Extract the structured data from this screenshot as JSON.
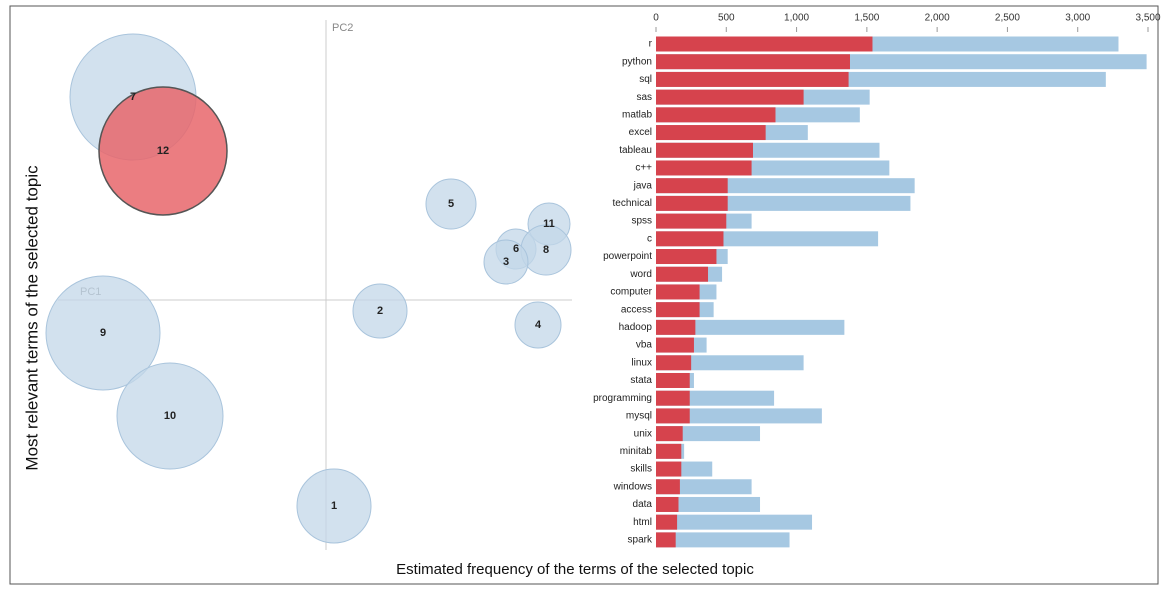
{
  "chart_data": [
    {
      "type": "bubble",
      "xlabel": "PC1",
      "ylabel": "PC2",
      "categories": [
        "7",
        "12",
        "5",
        "11",
        "6",
        "8",
        "3",
        "9",
        "2",
        "4",
        "10",
        "1"
      ],
      "x": [
        -1.93,
        -1.63,
        1.25,
        2.23,
        1.9,
        2.2,
        1.8,
        -2.23,
        0.54,
        2.12,
        -1.56,
        0.08
      ],
      "y": [
        2.03,
        1.49,
        0.96,
        0.76,
        0.51,
        0.5,
        0.38,
        -0.33,
        -0.11,
        -0.25,
        -1.16,
        -2.06
      ],
      "sizes": [
        0.63,
        0.64,
        0.25,
        0.21,
        0.2,
        0.25,
        0.22,
        0.57,
        0.27,
        0.23,
        0.53,
        0.37
      ],
      "colors": [
        "#c3d7e8",
        "#e8666b",
        "#c3d7e8",
        "#c3d7e8",
        "#c3d7e8",
        "#c3d7e8",
        "#c3d7e8",
        "#c3d7e8",
        "#c3d7e8",
        "#c3d7e8",
        "#c3d7e8",
        "#c3d7e8"
      ],
      "xlim": [
        -2.68,
        2.46
      ],
      "ylim": [
        -2.5,
        2.9
      ]
    },
    {
      "type": "hbar",
      "ylabel": "Most relevant terms of the selected topic",
      "xlabel": "Estimated frequency of the terms of the selected topic",
      "categories": [
        "r",
        "python",
        "sql",
        "sas",
        "matlab",
        "excel",
        "tableau",
        "c++",
        "java",
        "technical",
        "spss",
        "c",
        "powerpoint",
        "word",
        "computer",
        "access",
        "hadoop",
        "vba",
        "linux",
        "stata",
        "programming",
        "mysql",
        "unix",
        "minitab",
        "skills",
        "windows",
        "data",
        "html",
        "spark"
      ],
      "series": [
        {
          "color": "#a6c8e2",
          "values": [
            3290,
            3490,
            3200,
            1520,
            1450,
            1080,
            1590,
            1660,
            1840,
            1810,
            680,
            1580,
            510,
            470,
            430,
            410,
            1340,
            360,
            1050,
            270,
            840,
            1180,
            740,
            200,
            400,
            680,
            740,
            1110,
            950
          ]
        },
        {
          "color": "#d6434d",
          "values": [
            1540,
            1380,
            1370,
            1050,
            850,
            780,
            690,
            680,
            510,
            510,
            500,
            480,
            430,
            370,
            310,
            310,
            280,
            270,
            250,
            240,
            240,
            240,
            190,
            180,
            180,
            170,
            160,
            150,
            140
          ]
        }
      ],
      "xlim": [
        0,
        3500
      ],
      "xticks": [
        0,
        500,
        {
          "value": 1000,
          "label": "1,000"
        },
        {
          "value": 1500,
          "label": "1,500"
        },
        {
          "value": 2000,
          "label": "2,000"
        },
        {
          "value": 2500,
          "label": "2,500"
        },
        {
          "value": 3000,
          "label": "3,000"
        },
        {
          "value": 3500,
          "label": "3,500"
        }
      ]
    }
  ]
}
